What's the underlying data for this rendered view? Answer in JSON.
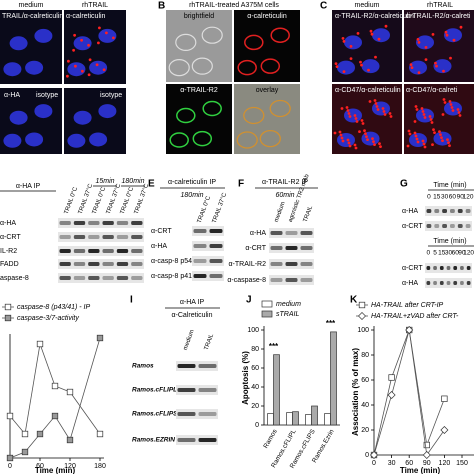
{
  "panel_a": {
    "column_labels": [
      "medium",
      "rhTRAIL"
    ],
    "image_labels": [
      "TRAIL/α-calreticulin",
      "α-calreticulin",
      "α-HA",
      "isotype",
      "isotype"
    ]
  },
  "panel_b": {
    "letter": "B",
    "title": "rhTRAIL-treated A375M cells",
    "image_labels": [
      "brightfield",
      "α-calreticulin",
      "α-TRAIL-R2",
      "overlay"
    ]
  },
  "panel_c": {
    "letter": "C",
    "column_labels": [
      "medium",
      "rhTRAIL"
    ],
    "image_labels": [
      "α-TRAIL-R2/α-calreticulin",
      "α-TRAIL-R2/α-calreti",
      "α-CD47/α-calreticulin",
      "α-CD47/α-calreti"
    ]
  },
  "panel_d": {
    "title": "α-HA IP",
    "times": [
      "15min",
      "180min"
    ],
    "lanes": [
      "TRAIL 0°C",
      "TRAIL 37°C",
      "TRAIL 0°C",
      "TRAIL 37°C",
      "TRAIL 0°C",
      "TRAIL 37°C"
    ],
    "rows": [
      "α-HA",
      "α-CRT",
      "IL-R2",
      "FADD",
      "aspase-8"
    ]
  },
  "panel_e": {
    "letter": "E",
    "title": "α-calreticulin IP",
    "time": "180min",
    "lanes": [
      "TRAIL 0°C",
      "TRAIL 37°C"
    ],
    "rows": [
      "α-CRT",
      "α-HA",
      "α-casp-8 p54",
      "α-casp-8 p41-43"
    ]
  },
  "panel_f": {
    "letter": "F",
    "title": "α-TRAIL-R2 IP",
    "time": "60min",
    "lanes": [
      "medium",
      "agonistic TR2 mAb",
      "TRAIL"
    ],
    "rows": [
      "α-HA",
      "α-CRT",
      "α-TRAIL-R2",
      "α-caspase-8"
    ]
  },
  "panel_g": {
    "letter": "G",
    "blots": [
      {
        "axis_label": "Time (min)",
        "times": [
          "0",
          "15",
          "30",
          "60",
          "90",
          "120"
        ],
        "rows": [
          "α-HA",
          "α-CRT"
        ]
      },
      {
        "axis_label": "Time (min)",
        "times": [
          "0",
          "5",
          "15",
          "30",
          "60",
          "90",
          "120"
        ],
        "rows": [
          "α-CRT",
          "α-HA"
        ]
      }
    ]
  },
  "panel_i": {
    "letter": "I",
    "title": "α-HA IP",
    "subtitle": "α-Calreticulin",
    "lanes": [
      "medium",
      "TRAIL"
    ],
    "rows": [
      "Ramos",
      "Ramos.cFLIPL",
      "Ramos.cFLIPS",
      "Ramos.EZRIN"
    ]
  },
  "chart_data": [
    {
      "type": "line",
      "xlabel": "Time (min)",
      "x": [
        0,
        30,
        60,
        90,
        120,
        180
      ],
      "xlim": [
        0,
        180
      ],
      "xticks": [
        0,
        60,
        120,
        180
      ],
      "ylim": [
        0,
        100
      ],
      "series": [
        {
          "name": "caspase-8 (p43/41) - IP",
          "color": "#ffffff",
          "values": [
            35,
            20,
            95,
            60,
            55,
            20
          ]
        },
        {
          "name": "caspase-3/7-activity",
          "color": "#999999",
          "values": [
            0,
            5,
            20,
            35,
            15,
            100
          ]
        }
      ]
    },
    {
      "type": "bar",
      "letter": "J",
      "ylabel": "Apoptosis (%)",
      "categories": [
        "Ramos",
        "Ramos.cFLIPL",
        "Ramos.cFLIPS",
        "Ramos.Ezrin"
      ],
      "ylim": [
        0,
        100
      ],
      "yticks": [
        0,
        20,
        40,
        60,
        80,
        100
      ],
      "series": [
        {
          "name": "medium",
          "color": "#ffffff",
          "values": [
            12,
            13,
            11,
            12
          ]
        },
        {
          "name": "sTRAIL",
          "color": "#aaaaaa",
          "values": [
            74,
            14,
            20,
            98
          ]
        }
      ],
      "annotations": [
        "***",
        "***"
      ]
    },
    {
      "type": "line",
      "letter": "K",
      "xlabel": "Time (min)",
      "ylabel": "Association (% of max)",
      "x": [
        0,
        30,
        60,
        90,
        120
      ],
      "xlim": [
        0,
        150
      ],
      "xticks": [
        0,
        30,
        60,
        90,
        120,
        150
      ],
      "ylim": [
        0,
        100
      ],
      "yticks": [
        0,
        20,
        40,
        60,
        80,
        100
      ],
      "series": [
        {
          "name": "HA-TRAIL after CRT-IP",
          "color": "#ffffff",
          "marker": "square",
          "values": [
            0,
            62,
            100,
            8,
            45
          ]
        },
        {
          "name": "HA-TRAIL+zVAD after CRT-",
          "color": "#ffffff",
          "marker": "diamond",
          "values": [
            0,
            48,
            100,
            0,
            20
          ]
        }
      ]
    }
  ]
}
